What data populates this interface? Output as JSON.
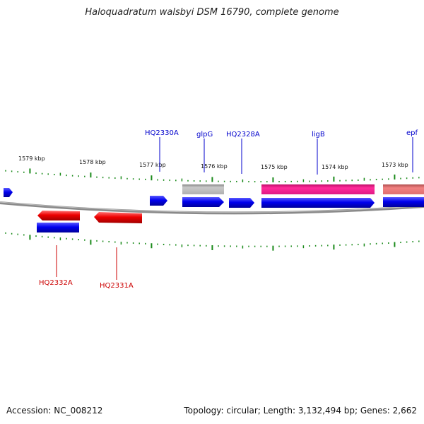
{
  "title": "Haloquadratum walsbyi DSM 16790, complete genome",
  "footer": {
    "accession": "Accession: NC_008212",
    "summary": "Topology: circular; Length: 3,132,494 bp; Genes: 2,662"
  },
  "colors": {
    "backbone": "#7a7a7a",
    "tick": "#1a8a1a",
    "cds": "#0000ee",
    "cds_reverse": "#ee0000",
    "label_top": "#0000cc",
    "label_bottom": "#cc0000",
    "gray_feature": "#b8b8b8",
    "pink_feature": "#ff2b9a",
    "salmon_feature": "#f08080"
  },
  "scale_labels": [
    {
      "text": "1579 kbp"
    },
    {
      "text": "1578 kbp"
    },
    {
      "text": "1577 kbp"
    },
    {
      "text": "1576 kbp"
    },
    {
      "text": "1575 kbp"
    },
    {
      "text": "1574 kbp"
    },
    {
      "text": "1573 kbp"
    }
  ],
  "gene_labels_top": [
    {
      "text": "HQ2330A"
    },
    {
      "text": "glpG"
    },
    {
      "text": "HQ2328A"
    },
    {
      "text": "ligB"
    },
    {
      "text": "epf"
    }
  ],
  "gene_labels_bottom": [
    {
      "text": "HQ2332A"
    },
    {
      "text": "HQ2331A"
    }
  ]
}
